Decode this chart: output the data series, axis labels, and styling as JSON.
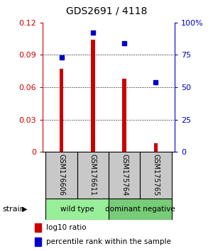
{
  "title": "GDS2691 / 4118",
  "samples": [
    "GSM176606",
    "GSM176611",
    "GSM175764",
    "GSM175765"
  ],
  "log10_ratio": [
    0.077,
    0.104,
    0.068,
    0.008
  ],
  "percentile_rank": [
    0.73,
    0.92,
    0.84,
    0.54
  ],
  "bar_color": "#cc0000",
  "dot_color": "#0000cc",
  "ylim_left": [
    0,
    0.12
  ],
  "ylim_right": [
    0,
    1.0
  ],
  "yticks_left": [
    0,
    0.03,
    0.06,
    0.09,
    0.12
  ],
  "yticks_right": [
    0,
    0.25,
    0.5,
    0.75,
    1.0
  ],
  "ytick_labels_left": [
    "0",
    "0.03",
    "0.06",
    "0.09",
    "0.12"
  ],
  "ytick_labels_right": [
    "0",
    "25",
    "50",
    "75",
    "100%"
  ],
  "groups": [
    {
      "label": "wild type",
      "indices": [
        0,
        1
      ],
      "color": "#99ee99"
    },
    {
      "label": "dominant negative",
      "indices": [
        2,
        3
      ],
      "color": "#77cc77"
    }
  ],
  "strain_label": "strain",
  "legend_bar_label": "log10 ratio",
  "legend_dot_label": "percentile rank within the sample",
  "sample_box_color": "#c8c8c8",
  "bar_width": 0.12
}
